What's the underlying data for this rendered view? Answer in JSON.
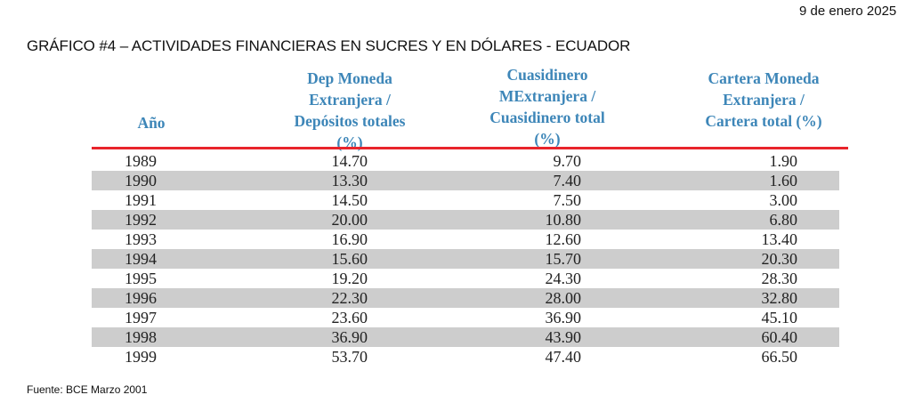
{
  "date": "9 de enero 2025",
  "title": "GRÁFICO #4 – ACTIVIDADES FINANCIERAS EN SUCRES Y EN DÓLARES - ECUADOR",
  "table": {
    "headers": [
      [
        "Año"
      ],
      [
        "Dep Moneda",
        "Extranjera /",
        "Depósitos totales",
        "(%)"
      ],
      [
        "Cuasidinero",
        "MExtranjera /",
        "Cuasidinero total",
        "(%)"
      ],
      [
        "Cartera Moneda",
        "Extranjera /",
        "Cartera total (%)"
      ]
    ],
    "rows": [
      [
        "1989",
        "14.70",
        "9.70",
        "1.90"
      ],
      [
        "1990",
        "13.30",
        "7.40",
        "1.60"
      ],
      [
        "1991",
        "14.50",
        "7.50",
        "3.00"
      ],
      [
        "1992",
        "20.00",
        "10.80",
        "6.80"
      ],
      [
        "1993",
        "16.90",
        "12.60",
        "13.40"
      ],
      [
        "1994",
        "15.60",
        "15.70",
        "20.30"
      ],
      [
        "1995",
        "19.20",
        "24.30",
        "28.30"
      ],
      [
        "1996",
        "22.30",
        "28.00",
        "32.80"
      ],
      [
        "1997",
        "23.60",
        "36.90",
        "45.10"
      ],
      [
        "1998",
        "36.90",
        "43.90",
        "60.40"
      ],
      [
        "1999",
        "53.70",
        "47.40",
        "66.50"
      ]
    ]
  },
  "source": "Fuente: BCE Marzo 2001",
  "colors": {
    "header": "#3d86b8",
    "rule": "#e8242b",
    "band": "#cdcdcd"
  }
}
